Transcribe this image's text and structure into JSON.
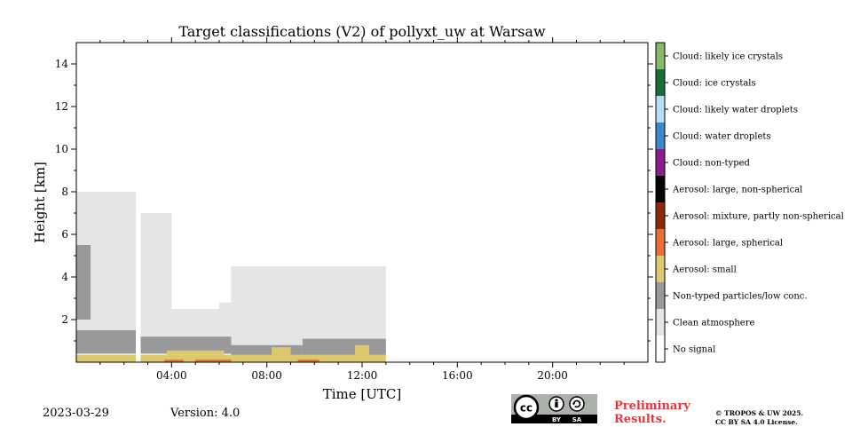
{
  "chart_data": {
    "type": "heatmap",
    "title": "Target classifications (V2) of pollyxt_uw at Warsaw",
    "xlabel": "Time [UTC]",
    "ylabel": "Height [km]",
    "xlim": [
      0,
      24
    ],
    "ylim": [
      0,
      15
    ],
    "x_ticks": [
      {
        "value": 4,
        "label": "04:00"
      },
      {
        "value": 8,
        "label": "08:00"
      },
      {
        "value": 12,
        "label": "12:00"
      },
      {
        "value": 16,
        "label": "16:00"
      },
      {
        "value": 20,
        "label": "20:00"
      }
    ],
    "y_ticks": [
      {
        "value": 2,
        "label": "2"
      },
      {
        "value": 4,
        "label": "4"
      },
      {
        "value": 6,
        "label": "6"
      },
      {
        "value": 8,
        "label": "8"
      },
      {
        "value": 10,
        "label": "10"
      },
      {
        "value": 12,
        "label": "12"
      },
      {
        "value": 14,
        "label": "14"
      }
    ],
    "classes": [
      {
        "label": "No signal",
        "color": "#ffffff"
      },
      {
        "label": "Clean atmosphere",
        "color": "#e5e5e5"
      },
      {
        "label": "Non-typed particles/low conc.",
        "color": "#999999"
      },
      {
        "label": "Aerosol: small",
        "color": "#dcc86e"
      },
      {
        "label": "Aerosol: large, spherical",
        "color": "#ea6d3a"
      },
      {
        "label": "Aerosol: mixture, partly non-spherical",
        "color": "#8c2a08"
      },
      {
        "label": "Aerosol: large, non-spherical",
        "color": "#000000"
      },
      {
        "label": "Cloud: non-typed",
        "color": "#8a1e8c"
      },
      {
        "label": "Cloud: water droplets",
        "color": "#3b88c9"
      },
      {
        "label": "Cloud: likely water droplets",
        "color": "#b7dcf6"
      },
      {
        "label": "Cloud: ice crystals",
        "color": "#17703a"
      },
      {
        "label": "Cloud: likely ice crystals",
        "color": "#86b866"
      }
    ],
    "regions": [
      {
        "class": "Clean atmosphere",
        "time": [
          0,
          2.5
        ],
        "height": [
          0.4,
          8.0
        ]
      },
      {
        "class": "Clean atmosphere",
        "time": [
          2.7,
          4.0
        ],
        "height": [
          0.4,
          7.0
        ]
      },
      {
        "class": "Clean atmosphere",
        "time": [
          4.0,
          6.0
        ],
        "height": [
          0.4,
          2.5
        ]
      },
      {
        "class": "Clean atmosphere",
        "time": [
          6.0,
          13.0
        ],
        "height": [
          0.4,
          2.8
        ]
      },
      {
        "class": "Clean atmosphere",
        "time": [
          6.5,
          13.0
        ],
        "height": [
          2.8,
          4.5
        ]
      },
      {
        "class": "Non-typed particles/low conc.",
        "time": [
          0,
          2.5
        ],
        "height": [
          0.4,
          1.5
        ]
      },
      {
        "class": "Non-typed particles/low conc.",
        "time": [
          2.7,
          6.5
        ],
        "height": [
          0.4,
          1.2
        ]
      },
      {
        "class": "Non-typed particles/low conc.",
        "time": [
          6.5,
          9.5
        ],
        "height": [
          0.3,
          0.8
        ]
      },
      {
        "class": "Non-typed particles/low conc.",
        "time": [
          9.5,
          13.0
        ],
        "height": [
          0.3,
          1.1
        ]
      },
      {
        "class": "Non-typed particles/low conc.",
        "time": [
          0,
          0.6
        ],
        "height": [
          2.0,
          5.5
        ]
      },
      {
        "class": "Aerosol: small",
        "time": [
          0,
          13.0
        ],
        "height": [
          0,
          0.35
        ]
      },
      {
        "class": "Aerosol: small",
        "time": [
          3.8,
          6.2
        ],
        "height": [
          0.35,
          0.55
        ]
      },
      {
        "class": "Aerosol: small",
        "time": [
          8.2,
          9.0
        ],
        "height": [
          0.35,
          0.7
        ]
      },
      {
        "class": "Aerosol: small",
        "time": [
          11.7,
          12.3
        ],
        "height": [
          0.35,
          0.8
        ]
      },
      {
        "class": "Aerosol: large, spherical",
        "time": [
          3.7,
          4.5
        ],
        "height": [
          0,
          0.12
        ]
      },
      {
        "class": "Aerosol: large, spherical",
        "time": [
          5.0,
          6.5
        ],
        "height": [
          0,
          0.12
        ]
      },
      {
        "class": "Aerosol: large, spherical",
        "time": [
          9.3,
          10.2
        ],
        "height": [
          0,
          0.12
        ]
      },
      {
        "class": "No signal",
        "time": [
          2.5,
          2.7
        ],
        "height": [
          0,
          15
        ]
      }
    ],
    "footer": {
      "date": "2023-03-29",
      "version": "Version: 4.0",
      "preliminary": [
        "Preliminary",
        "Results."
      ],
      "copyright": [
        "© TROPOS & UW 2025.",
        "CC BY SA 4.0 License."
      ],
      "badge": {
        "cc": "cc",
        "by": "BY",
        "sa": "SA"
      }
    }
  }
}
